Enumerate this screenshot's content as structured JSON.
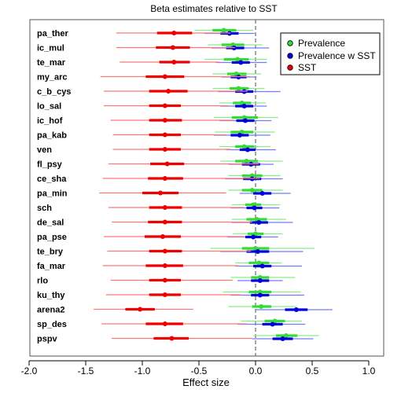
{
  "chart_data": {
    "type": "scatter",
    "title": "Beta estimates relative to SST",
    "xlabel": "Effect size",
    "ylabel": "",
    "xlim": [
      -2.0,
      1.0
    ],
    "xticks": [
      -2.0,
      -1.5,
      -1.0,
      -0.5,
      0.0,
      0.5,
      1.0
    ],
    "xtick_labels": [
      "-2.0",
      "-1.5",
      "-1.0",
      "-0.5",
      "0.0",
      "0.5",
      "1.0"
    ],
    "reference_line": 0.0,
    "categories": [
      "pa_ther",
      "ic_mul",
      "te_mar",
      "my_arc",
      "c_b_cys",
      "lo_sal",
      "ic_hof",
      "pa_kab",
      "ven",
      "fl_psy",
      "ce_sha",
      "pa_min",
      "sch",
      "de_sal",
      "pa_pse",
      "te_bry",
      "fa_mar",
      "rlo",
      "ku_thy",
      "arena2",
      "sp_des",
      "pspv"
    ],
    "legend": {
      "placement": "top-right",
      "entries": [
        "Prevalence",
        "Prevalence w SST",
        "SST"
      ]
    },
    "series": [
      {
        "name": "Prevalence",
        "color": "#33dd33",
        "light_color": "#88ee88",
        "estimate": [
          -0.28,
          -0.2,
          -0.16,
          -0.17,
          -0.15,
          -0.12,
          -0.1,
          -0.12,
          -0.1,
          -0.08,
          -0.03,
          -0.03,
          -0.02,
          0.01,
          0.0,
          0.0,
          0.03,
          0.04,
          0.04,
          0.05,
          0.17,
          0.27
        ],
        "inner": [
          [
            -0.38,
            -0.17
          ],
          [
            -0.3,
            -0.1
          ],
          [
            -0.28,
            -0.06
          ],
          [
            -0.25,
            -0.08
          ],
          [
            -0.23,
            -0.06
          ],
          [
            -0.2,
            -0.04
          ],
          [
            -0.21,
            0.02
          ],
          [
            -0.22,
            -0.02
          ],
          [
            -0.18,
            -0.01
          ],
          [
            -0.18,
            0.02
          ],
          [
            -0.12,
            0.06
          ],
          [
            -0.12,
            0.06
          ],
          [
            -0.09,
            0.05
          ],
          [
            -0.08,
            0.1
          ],
          [
            -0.07,
            0.07
          ],
          [
            -0.12,
            0.12
          ],
          [
            -0.06,
            0.12
          ],
          [
            -0.04,
            0.12
          ],
          [
            -0.06,
            0.14
          ],
          [
            -0.03,
            0.14
          ],
          [
            0.08,
            0.26
          ],
          [
            0.18,
            0.37
          ]
        ],
        "outer": [
          [
            -0.54,
            -0.02
          ],
          [
            -0.42,
            0.06
          ],
          [
            -0.45,
            0.1
          ],
          [
            -0.38,
            0.05
          ],
          [
            -0.38,
            0.08
          ],
          [
            -0.32,
            0.09
          ],
          [
            -0.37,
            0.2
          ],
          [
            -0.36,
            0.17
          ],
          [
            -0.32,
            0.13
          ],
          [
            -0.31,
            0.24
          ],
          [
            -0.24,
            0.22
          ],
          [
            -0.24,
            0.24
          ],
          [
            -0.21,
            0.22
          ],
          [
            -0.21,
            0.27
          ],
          [
            -0.2,
            0.24
          ],
          [
            -0.4,
            0.52
          ],
          [
            -0.18,
            0.23
          ],
          [
            -0.22,
            0.35
          ],
          [
            -0.29,
            0.4
          ],
          [
            -0.24,
            0.36
          ],
          [
            -0.13,
            0.41
          ],
          [
            -0.02,
            0.56
          ]
        ]
      },
      {
        "name": "Prevalence w SST",
        "color": "#0000dd",
        "light_color": "#7777ff",
        "estimate": [
          -0.23,
          -0.19,
          -0.13,
          -0.15,
          -0.1,
          -0.1,
          -0.09,
          -0.14,
          -0.07,
          -0.04,
          -0.03,
          0.06,
          -0.01,
          0.03,
          -0.02,
          0.02,
          0.06,
          0.04,
          0.04,
          0.36,
          0.15,
          0.24
        ],
        "inner": [
          [
            -0.31,
            -0.15
          ],
          [
            -0.26,
            -0.1
          ],
          [
            -0.21,
            -0.05
          ],
          [
            -0.22,
            -0.08
          ],
          [
            -0.18,
            -0.02
          ],
          [
            -0.18,
            -0.02
          ],
          [
            -0.17,
            -0.01
          ],
          [
            -0.22,
            -0.06
          ],
          [
            -0.14,
            0.0
          ],
          [
            -0.12,
            0.04
          ],
          [
            -0.11,
            0.05
          ],
          [
            -0.02,
            0.14
          ],
          [
            -0.08,
            0.06
          ],
          [
            -0.05,
            0.11
          ],
          [
            -0.09,
            0.05
          ],
          [
            -0.08,
            0.12
          ],
          [
            -0.02,
            0.14
          ],
          [
            -0.04,
            0.12
          ],
          [
            -0.04,
            0.12
          ],
          [
            0.26,
            0.46
          ],
          [
            0.06,
            0.24
          ],
          [
            0.15,
            0.33
          ]
        ],
        "outer": [
          [
            -0.45,
            -0.01
          ],
          [
            -0.39,
            0.12
          ],
          [
            -0.35,
            0.1
          ],
          [
            -0.3,
            0.01
          ],
          [
            -0.33,
            0.22
          ],
          [
            -0.31,
            0.1
          ],
          [
            -0.32,
            0.14
          ],
          [
            -0.37,
            0.13
          ],
          [
            -0.26,
            0.18
          ],
          [
            -0.24,
            0.16
          ],
          [
            -0.27,
            0.24
          ],
          [
            -0.14,
            0.31
          ],
          [
            -0.22,
            0.21
          ],
          [
            -0.21,
            0.33
          ],
          [
            -0.25,
            0.2
          ],
          [
            -0.31,
            0.42
          ],
          [
            -0.18,
            0.41
          ],
          [
            -0.16,
            0.24
          ],
          [
            -0.22,
            0.43
          ],
          [
            0.0,
            0.68
          ],
          [
            -0.16,
            0.44
          ],
          [
            -0.03,
            0.51
          ]
        ]
      },
      {
        "name": "SST",
        "color": "#ee0000",
        "light_color": "#ff7777",
        "estimate": [
          -0.72,
          -0.73,
          -0.72,
          -0.8,
          -0.77,
          -0.8,
          -0.8,
          -0.8,
          -0.8,
          -0.78,
          -0.8,
          -0.84,
          -0.8,
          -0.8,
          -0.82,
          -0.8,
          -0.8,
          -0.8,
          -0.8,
          -1.02,
          -0.8,
          -0.74
        ],
        "inner": [
          [
            -0.87,
            -0.56
          ],
          [
            -0.88,
            -0.58
          ],
          [
            -0.85,
            -0.58
          ],
          [
            -0.97,
            -0.63
          ],
          [
            -0.94,
            -0.6
          ],
          [
            -0.94,
            -0.66
          ],
          [
            -0.94,
            -0.65
          ],
          [
            -0.94,
            -0.66
          ],
          [
            -0.94,
            -0.66
          ],
          [
            -0.93,
            -0.63
          ],
          [
            -0.95,
            -0.64
          ],
          [
            -1.0,
            -0.68
          ],
          [
            -0.94,
            -0.65
          ],
          [
            -0.95,
            -0.65
          ],
          [
            -0.98,
            -0.66
          ],
          [
            -0.94,
            -0.65
          ],
          [
            -0.97,
            -0.64
          ],
          [
            -0.94,
            -0.66
          ],
          [
            -0.94,
            -0.66
          ],
          [
            -1.15,
            -0.89
          ],
          [
            -0.97,
            -0.64
          ],
          [
            -0.9,
            -0.59
          ]
        ],
        "outer": [
          [
            -1.23,
            -0.22
          ],
          [
            -1.23,
            -0.18
          ],
          [
            -1.2,
            -0.32
          ],
          [
            -1.37,
            -0.05
          ],
          [
            -1.34,
            -0.07
          ],
          [
            -1.34,
            -0.24
          ],
          [
            -1.28,
            -0.19
          ],
          [
            -1.26,
            -0.26
          ],
          [
            -1.26,
            -0.22
          ],
          [
            -1.3,
            0.03
          ],
          [
            -1.35,
            0.04
          ],
          [
            -1.38,
            -0.26
          ],
          [
            -1.3,
            -0.1
          ],
          [
            -1.27,
            -0.03
          ],
          [
            -1.34,
            -0.1
          ],
          [
            -1.31,
            -0.04
          ],
          [
            -1.35,
            -0.15
          ],
          [
            -1.28,
            -0.2
          ],
          [
            -1.32,
            -0.13
          ],
          [
            -1.43,
            -0.55
          ],
          [
            -1.36,
            -0.08
          ],
          [
            -1.27,
            -0.03
          ]
        ]
      }
    ]
  }
}
